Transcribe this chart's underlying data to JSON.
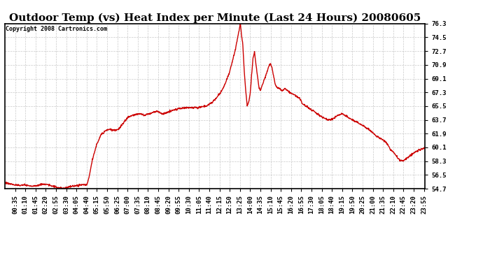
{
  "title": "Outdoor Temp (vs) Heat Index per Minute (Last 24 Hours) 20080605",
  "copyright_text": "Copyright 2008 Cartronics.com",
  "line_color": "#cc0000",
  "background_color": "#ffffff",
  "plot_bg_color": "#ffffff",
  "grid_color": "#bbbbbb",
  "ylim": [
    54.7,
    76.3
  ],
  "yticks": [
    54.7,
    56.5,
    58.3,
    60.1,
    61.9,
    63.7,
    65.5,
    67.3,
    69.1,
    70.9,
    72.7,
    74.5,
    76.3
  ],
  "title_fontsize": 11,
  "tick_fontsize": 6.5,
  "copyright_fontsize": 6,
  "line_width": 1.0,
  "xtick_interval_minutes": 35,
  "figsize": [
    6.9,
    3.75
  ],
  "dpi": 100
}
